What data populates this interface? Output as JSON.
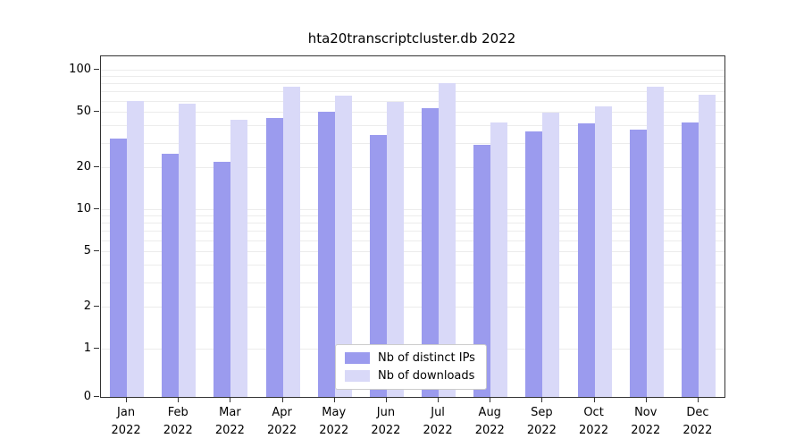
{
  "chart_data": {
    "type": "bar",
    "title": "hta20transcriptcluster.db 2022",
    "categories": [
      "Jan",
      "Feb",
      "Mar",
      "Apr",
      "May",
      "Jun",
      "Jul",
      "Aug",
      "Sep",
      "Oct",
      "Nov",
      "Dec"
    ],
    "x_year": "2022",
    "series": [
      {
        "name": "Nb of distinct IPs",
        "color": "#9b9bee",
        "values": [
          32,
          25,
          22,
          45,
          50,
          34,
          53,
          29,
          36,
          41,
          37,
          42
        ]
      },
      {
        "name": "Nb of downloads",
        "color": "#d9d9f8",
        "values": [
          60,
          57,
          44,
          75,
          65,
          59,
          80,
          42,
          49,
          55,
          75,
          66
        ]
      }
    ],
    "yscale": "symlog",
    "yticks": [
      0,
      1,
      2,
      5,
      10,
      20,
      50,
      100
    ],
    "grid_values": [
      1,
      2,
      3,
      4,
      5,
      6,
      7,
      8,
      9,
      10,
      20,
      30,
      40,
      50,
      60,
      70,
      80,
      90,
      100
    ],
    "ylim": [
      0,
      130
    ],
    "grid": "on",
    "legend_position": "lower center"
  }
}
